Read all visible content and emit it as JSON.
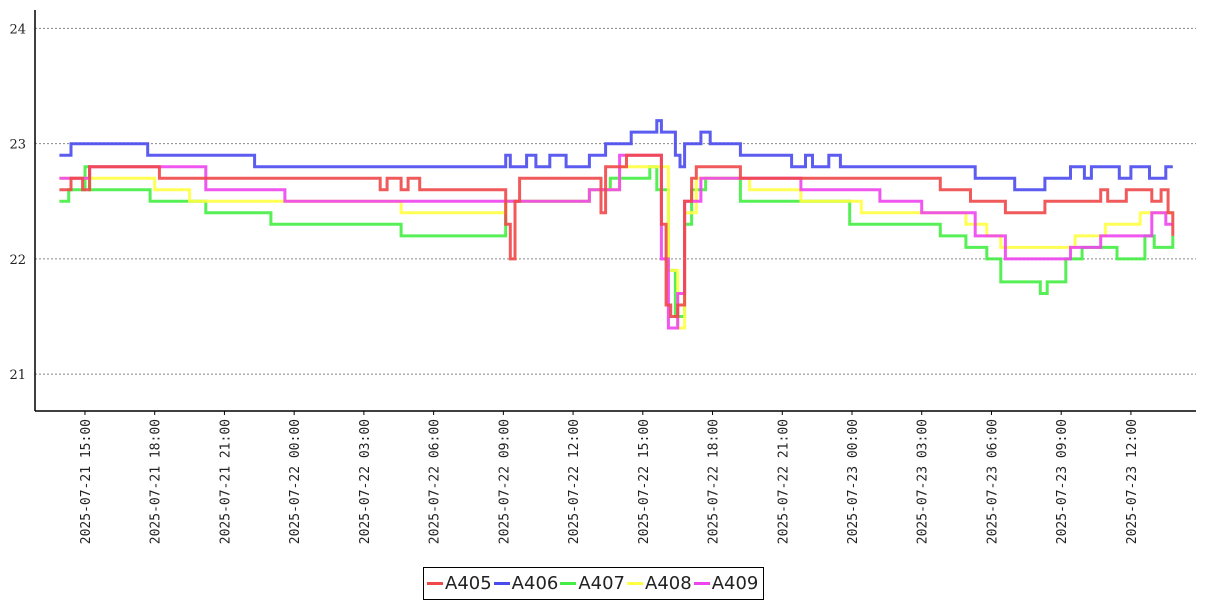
{
  "chart_data": {
    "type": "line",
    "title": "",
    "xlabel": "",
    "ylabel": "",
    "x_units": "hours since 2025-07-21 00:00",
    "xlim": [
      12.85,
      62.8
    ],
    "ylim": [
      20.68,
      24.16
    ],
    "yticks": [
      21,
      22,
      23,
      24
    ],
    "ytick_labels": [
      "21",
      "22",
      "23",
      "24"
    ],
    "xticks": [
      15,
      18,
      21,
      24,
      27,
      30,
      33,
      36,
      39,
      42,
      45,
      48,
      51,
      54,
      57,
      60
    ],
    "xtick_labels": [
      "2025-07-21  15:00",
      "2025-07-21  18:00",
      "2025-07-21  21:00",
      "2025-07-22  00:00",
      "2025-07-22  03:00",
      "2025-07-22  06:00",
      "2025-07-22  09:00",
      "2025-07-22  12:00",
      "2025-07-22  15:00",
      "2025-07-22  18:00",
      "2025-07-22  21:00",
      "2025-07-23  00:00",
      "2025-07-23  03:00",
      "2025-07-23  06:00",
      "2025-07-23  09:00",
      "2025-07-23  12:00"
    ],
    "grid": "horizontal dotted",
    "legend_placement": "bottom-center",
    "series": [
      {
        "name": "A406",
        "color": "#4a4aee",
        "points": [
          [
            13.9,
            22.9
          ],
          [
            14.4,
            23.0
          ],
          [
            17.7,
            22.9
          ],
          [
            22.3,
            22.8
          ],
          [
            32.9,
            22.8
          ],
          [
            33.1,
            22.9
          ],
          [
            33.3,
            22.8
          ],
          [
            34.0,
            22.9
          ],
          [
            34.4,
            22.8
          ],
          [
            35.0,
            22.9
          ],
          [
            35.7,
            22.8
          ],
          [
            36.7,
            22.9
          ],
          [
            37.4,
            23.0
          ],
          [
            38.5,
            23.1
          ],
          [
            39.6,
            23.2
          ],
          [
            39.8,
            23.1
          ],
          [
            40.4,
            22.9
          ],
          [
            40.6,
            22.8
          ],
          [
            40.8,
            23.0
          ],
          [
            41.5,
            23.1
          ],
          [
            41.9,
            23.0
          ],
          [
            43.2,
            22.9
          ],
          [
            45.4,
            22.8
          ],
          [
            46.0,
            22.9
          ],
          [
            46.3,
            22.8
          ],
          [
            47.0,
            22.9
          ],
          [
            47.5,
            22.8
          ],
          [
            53.3,
            22.7
          ],
          [
            55.0,
            22.6
          ],
          [
            56.3,
            22.7
          ],
          [
            57.4,
            22.8
          ],
          [
            58.0,
            22.7
          ],
          [
            58.3,
            22.8
          ],
          [
            59.5,
            22.7
          ],
          [
            60.0,
            22.8
          ],
          [
            60.8,
            22.7
          ],
          [
            61.5,
            22.8
          ],
          [
            61.8,
            22.8
          ]
        ]
      },
      {
        "name": "A407",
        "color": "#44ee44",
        "points": [
          [
            13.9,
            22.5
          ],
          [
            14.3,
            22.6
          ],
          [
            15.0,
            22.8
          ],
          [
            15.2,
            22.6
          ],
          [
            17.8,
            22.5
          ],
          [
            20.2,
            22.4
          ],
          [
            23.0,
            22.3
          ],
          [
            28.6,
            22.2
          ],
          [
            32.9,
            22.2
          ],
          [
            33.1,
            22.5
          ],
          [
            36.7,
            22.6
          ],
          [
            37.6,
            22.7
          ],
          [
            39.3,
            22.8
          ],
          [
            39.6,
            22.6
          ],
          [
            40.1,
            21.9
          ],
          [
            40.4,
            21.5
          ],
          [
            40.8,
            22.3
          ],
          [
            41.1,
            22.6
          ],
          [
            41.7,
            22.7
          ],
          [
            43.2,
            22.5
          ],
          [
            47.9,
            22.3
          ],
          [
            51.8,
            22.2
          ],
          [
            52.9,
            22.1
          ],
          [
            53.8,
            22.0
          ],
          [
            54.4,
            21.8
          ],
          [
            56.1,
            21.7
          ],
          [
            56.4,
            21.8
          ],
          [
            57.2,
            22.0
          ],
          [
            57.9,
            22.1
          ],
          [
            58.7,
            22.1
          ],
          [
            59.4,
            22.0
          ],
          [
            60.6,
            22.2
          ],
          [
            61.0,
            22.1
          ],
          [
            61.8,
            22.2
          ]
        ]
      },
      {
        "name": "A408",
        "color": "#ffff44",
        "points": [
          [
            13.9,
            22.7
          ],
          [
            18.0,
            22.6
          ],
          [
            19.5,
            22.5
          ],
          [
            28.6,
            22.4
          ],
          [
            32.9,
            22.4
          ],
          [
            33.1,
            22.5
          ],
          [
            36.7,
            22.6
          ],
          [
            38.0,
            22.8
          ],
          [
            39.8,
            22.8
          ],
          [
            40.1,
            21.9
          ],
          [
            40.5,
            21.4
          ],
          [
            40.8,
            22.4
          ],
          [
            41.3,
            22.7
          ],
          [
            43.6,
            22.6
          ],
          [
            45.8,
            22.5
          ],
          [
            48.4,
            22.4
          ],
          [
            52.9,
            22.3
          ],
          [
            53.8,
            22.2
          ],
          [
            54.4,
            22.1
          ],
          [
            57.6,
            22.2
          ],
          [
            58.9,
            22.3
          ],
          [
            60.4,
            22.4
          ],
          [
            61.8,
            22.4
          ]
        ]
      },
      {
        "name": "A409",
        "color": "#ee44ee",
        "points": [
          [
            13.9,
            22.7
          ],
          [
            15.2,
            22.8
          ],
          [
            20.2,
            22.6
          ],
          [
            23.6,
            22.5
          ],
          [
            36.7,
            22.6
          ],
          [
            38.0,
            22.9
          ],
          [
            39.5,
            22.9
          ],
          [
            39.8,
            22.0
          ],
          [
            40.1,
            21.4
          ],
          [
            40.5,
            21.7
          ],
          [
            40.8,
            22.5
          ],
          [
            41.5,
            22.7
          ],
          [
            45.8,
            22.6
          ],
          [
            49.2,
            22.5
          ],
          [
            51.0,
            22.4
          ],
          [
            53.3,
            22.2
          ],
          [
            54.6,
            22.0
          ],
          [
            57.4,
            22.1
          ],
          [
            58.7,
            22.2
          ],
          [
            60.9,
            22.4
          ],
          [
            61.5,
            22.3
          ],
          [
            61.8,
            22.3
          ]
        ]
      },
      {
        "name": "A405",
        "color": "#f04848",
        "points": [
          [
            13.9,
            22.6
          ],
          [
            14.4,
            22.7
          ],
          [
            14.9,
            22.6
          ],
          [
            15.2,
            22.8
          ],
          [
            18.2,
            22.7
          ],
          [
            27.7,
            22.6
          ],
          [
            28.0,
            22.7
          ],
          [
            28.6,
            22.6
          ],
          [
            28.9,
            22.7
          ],
          [
            29.4,
            22.6
          ],
          [
            32.9,
            22.6
          ],
          [
            33.1,
            22.3
          ],
          [
            33.3,
            22.0
          ],
          [
            33.5,
            22.5
          ],
          [
            33.7,
            22.7
          ],
          [
            37.0,
            22.7
          ],
          [
            37.2,
            22.4
          ],
          [
            37.4,
            22.8
          ],
          [
            38.3,
            22.9
          ],
          [
            39.5,
            22.9
          ],
          [
            39.8,
            22.3
          ],
          [
            40.0,
            21.6
          ],
          [
            40.2,
            21.5
          ],
          [
            40.5,
            21.6
          ],
          [
            40.8,
            22.5
          ],
          [
            41.1,
            22.7
          ],
          [
            41.3,
            22.8
          ],
          [
            43.2,
            22.7
          ],
          [
            51.8,
            22.6
          ],
          [
            53.1,
            22.5
          ],
          [
            54.6,
            22.4
          ],
          [
            56.3,
            22.5
          ],
          [
            58.3,
            22.5
          ],
          [
            58.7,
            22.6
          ],
          [
            59.0,
            22.5
          ],
          [
            59.8,
            22.6
          ],
          [
            60.9,
            22.5
          ],
          [
            61.3,
            22.6
          ],
          [
            61.6,
            22.4
          ],
          [
            61.8,
            22.2
          ]
        ]
      }
    ]
  },
  "legend": [
    "A405",
    "A406",
    "A407",
    "A408",
    "A409"
  ],
  "legend_colors": [
    "#f04848",
    "#4a4aee",
    "#44ee44",
    "#ffff44",
    "#ee44ee"
  ]
}
